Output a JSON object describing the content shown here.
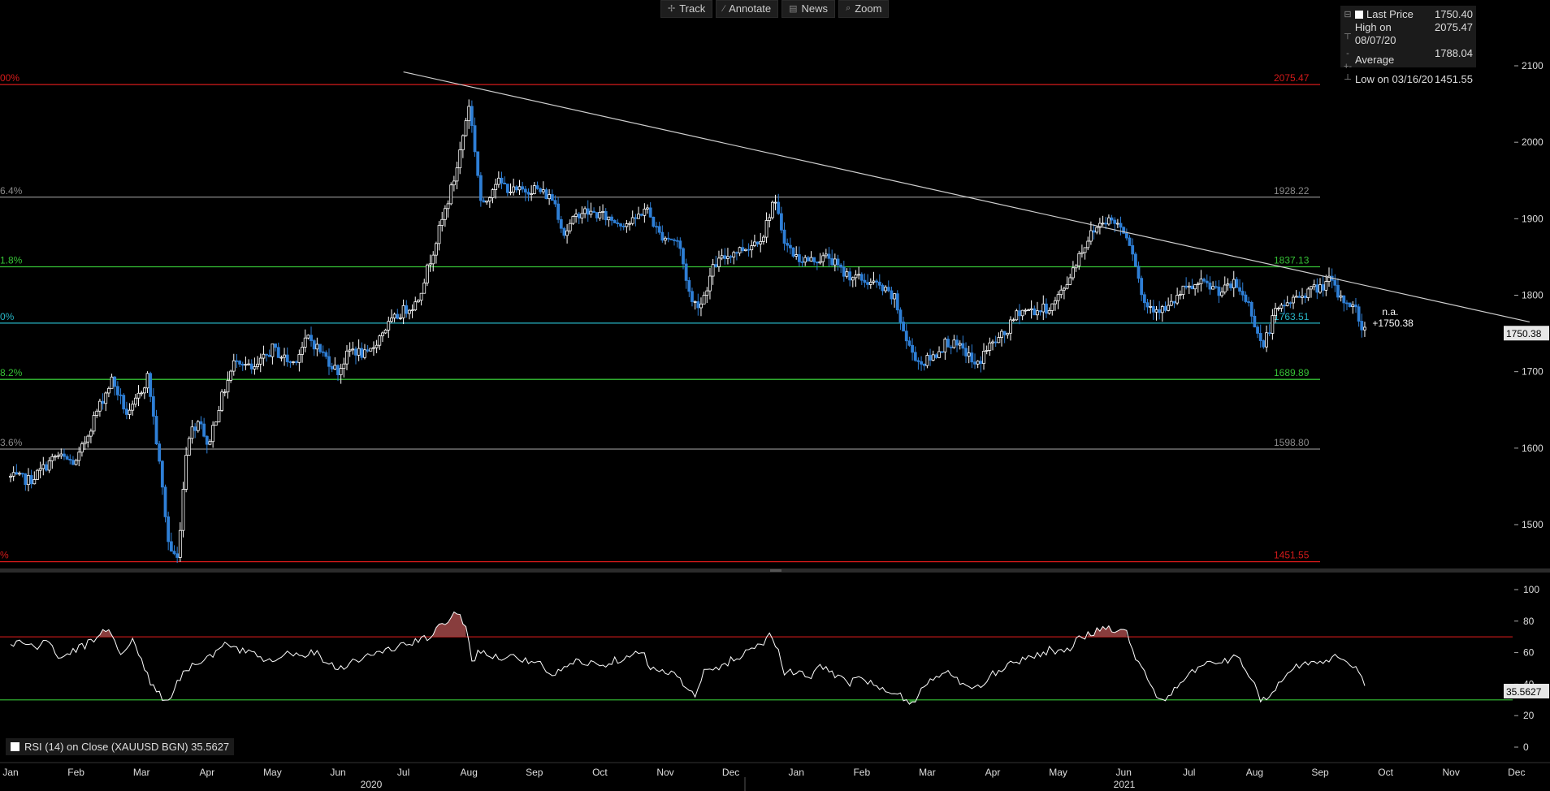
{
  "toolbar": {
    "track": "Track",
    "annotate": "Annotate",
    "news": "News",
    "zoom": "Zoom"
  },
  "legend": {
    "last_price_label": "Last Price",
    "last_price_value": "1750.40",
    "high_label": "High on 08/07/20",
    "high_value": "2075.47",
    "average_label": "Average",
    "average_value": "1788.04",
    "low_label": "Low on 03/16/20",
    "low_value": "1451.55"
  },
  "price_tag": "1750.38",
  "price_annotation_na": "n.a.",
  "price_annotation_value": "+1750.38",
  "rsi_tag": "35.5627",
  "rsi_label": "RSI (14)  on Close (XAUUSD BGN) 35.5627",
  "colors": {
    "background": "#000000",
    "candle_up": "#ffffff",
    "candle_down": "#2e7fd6",
    "fib_red": "#d41a1a",
    "fib_gray": "#8a8a8a",
    "fib_green": "#36c236",
    "fib_cyan": "#27b5c5",
    "trendline": "#cfcfcf",
    "rsi_line": "#ffffff",
    "rsi_overbought_fill": "#a04848",
    "rsi_oversold_fill": "#2e9e2e"
  },
  "chart_data": [
    {
      "type": "candlestick",
      "ylim": [
        1440,
        2120
      ],
      "y_ticks": [
        1500,
        1600,
        1700,
        1800,
        1900,
        2000,
        2100
      ],
      "x_month_labels": [
        "Jan",
        "Feb",
        "Mar",
        "Apr",
        "May",
        "Jun",
        "Jul",
        "Aug",
        "Sep",
        "Oct",
        "Nov",
        "Dec",
        "Jan",
        "Feb",
        "Mar",
        "Apr",
        "May",
        "Jun",
        "Jul",
        "Aug",
        "Sep",
        "Oct",
        "Nov",
        "Dec"
      ],
      "x_year_labels": [
        "2020",
        "2021"
      ],
      "fib_levels": [
        {
          "left_label": "00%",
          "price": 2075.47,
          "right_label": "2075.47",
          "color": "red"
        },
        {
          "left_label": "6.4%",
          "price": 1928.22,
          "right_label": "1928.22",
          "color": "gray"
        },
        {
          "left_label": "1.8%",
          "price": 1837.13,
          "right_label": "1837.13",
          "color": "green"
        },
        {
          "left_label": "0%",
          "price": 1763.51,
          "right_label": "1763.51",
          "color": "cyan"
        },
        {
          "left_label": "8.2%",
          "price": 1689.89,
          "right_label": "1689.89",
          "color": "green"
        },
        {
          "left_label": "3.6%",
          "price": 1598.8,
          "right_label": "1598.80",
          "color": "gray"
        },
        {
          "left_label": "%",
          "price": 1451.55,
          "right_label": "1451.55",
          "color": "red"
        }
      ],
      "trendline": {
        "from": {
          "month_index": 6.0,
          "price": 2092
        },
        "to": {
          "month_index": 23.2,
          "price": 1765
        }
      },
      "price_anchors": [
        [
          0.0,
          1562
        ],
        [
          0.3,
          1558
        ],
        [
          0.7,
          1590
        ],
        [
          1.0,
          1580
        ],
        [
          1.3,
          1645
        ],
        [
          1.55,
          1690
        ],
        [
          1.8,
          1640
        ],
        [
          2.1,
          1695
        ],
        [
          2.3,
          1560
        ],
        [
          2.42,
          1470
        ],
        [
          2.55,
          1455
        ],
        [
          2.7,
          1615
        ],
        [
          2.9,
          1640
        ],
        [
          3.0,
          1600
        ],
        [
          3.2,
          1660
        ],
        [
          3.45,
          1720
        ],
        [
          3.7,
          1700
        ],
        [
          4.0,
          1730
        ],
        [
          4.3,
          1710
        ],
        [
          4.55,
          1745
        ],
        [
          4.8,
          1720
        ],
        [
          5.0,
          1700
        ],
        [
          5.2,
          1730
        ],
        [
          5.45,
          1720
        ],
        [
          5.7,
          1755
        ],
        [
          6.0,
          1780
        ],
        [
          6.2,
          1790
        ],
        [
          6.35,
          1830
        ],
        [
          6.6,
          1900
        ],
        [
          6.8,
          1960
        ],
        [
          7.0,
          2050
        ],
        [
          7.1,
          1985
        ],
        [
          7.2,
          1910
        ],
        [
          7.4,
          1950
        ],
        [
          7.7,
          1935
        ],
        [
          8.0,
          1940
        ],
        [
          8.3,
          1925
        ],
        [
          8.45,
          1880
        ],
        [
          8.7,
          1910
        ],
        [
          9.0,
          1905
        ],
        [
          9.3,
          1895
        ],
        [
          9.5,
          1895
        ],
        [
          9.7,
          1915
        ],
        [
          9.9,
          1880
        ],
        [
          10.2,
          1870
        ],
        [
          10.4,
          1790
        ],
        [
          10.55,
          1790
        ],
        [
          10.75,
          1840
        ],
        [
          11.0,
          1855
        ],
        [
          11.3,
          1865
        ],
        [
          11.5,
          1880
        ],
        [
          11.65,
          1925
        ],
        [
          11.75,
          1895
        ],
        [
          11.85,
          1865
        ],
        [
          12.0,
          1850
        ],
        [
          12.2,
          1845
        ],
        [
          12.5,
          1850
        ],
        [
          12.7,
          1830
        ],
        [
          13.0,
          1820
        ],
        [
          13.2,
          1815
        ],
        [
          13.5,
          1795
        ],
        [
          13.7,
          1735
        ],
        [
          13.9,
          1710
        ],
        [
          14.1,
          1720
        ],
        [
          14.3,
          1740
        ],
        [
          14.6,
          1725
        ],
        [
          14.75,
          1705
        ],
        [
          14.9,
          1730
        ],
        [
          15.2,
          1750
        ],
        [
          15.4,
          1780
        ],
        [
          15.7,
          1780
        ],
        [
          15.9,
          1785
        ],
        [
          16.1,
          1810
        ],
        [
          16.3,
          1850
        ],
        [
          16.5,
          1880
        ],
        [
          16.7,
          1900
        ],
        [
          16.9,
          1895
        ],
        [
          17.05,
          1880
        ],
        [
          17.15,
          1855
        ],
        [
          17.3,
          1790
        ],
        [
          17.45,
          1785
        ],
        [
          17.65,
          1780
        ],
        [
          17.9,
          1805
        ],
        [
          18.2,
          1815
        ],
        [
          18.5,
          1805
        ],
        [
          18.7,
          1815
        ],
        [
          18.9,
          1790
        ],
        [
          19.0,
          1765
        ],
        [
          19.12,
          1730
        ],
        [
          19.3,
          1775
        ],
        [
          19.5,
          1790
        ],
        [
          19.8,
          1805
        ],
        [
          20.0,
          1810
        ],
        [
          20.15,
          1820
        ],
        [
          20.3,
          1795
        ],
        [
          20.45,
          1790
        ],
        [
          20.55,
          1780
        ],
        [
          20.62,
          1760
        ],
        [
          20.7,
          1752
        ]
      ],
      "last_price": 1750.38
    },
    {
      "type": "line",
      "name": "RSI (14)",
      "ylim": [
        -6,
        110
      ],
      "y_ticks": [
        0,
        20,
        40,
        60,
        80,
        100
      ],
      "overbought": 70,
      "oversold": 30,
      "rsi_anchors": [
        [
          0.0,
          65
        ],
        [
          0.2,
          67
        ],
        [
          0.4,
          63
        ],
        [
          0.6,
          68
        ],
        [
          0.75,
          55
        ],
        [
          0.9,
          60
        ],
        [
          1.1,
          64
        ],
        [
          1.3,
          68
        ],
        [
          1.45,
          76
        ],
        [
          1.55,
          72
        ],
        [
          1.7,
          58
        ],
        [
          1.85,
          68
        ],
        [
          2.0,
          56
        ],
        [
          2.15,
          40
        ],
        [
          2.3,
          32
        ],
        [
          2.42,
          30
        ],
        [
          2.55,
          42
        ],
        [
          2.7,
          50
        ],
        [
          2.9,
          55
        ],
        [
          3.1,
          58
        ],
        [
          3.3,
          66
        ],
        [
          3.5,
          60
        ],
        [
          3.7,
          62
        ],
        [
          3.9,
          55
        ],
        [
          4.1,
          58
        ],
        [
          4.3,
          60
        ],
        [
          4.45,
          57
        ],
        [
          4.6,
          62
        ],
        [
          4.8,
          55
        ],
        [
          5.0,
          50
        ],
        [
          5.2,
          54
        ],
        [
          5.4,
          57
        ],
        [
          5.6,
          60
        ],
        [
          5.8,
          62
        ],
        [
          6.0,
          65
        ],
        [
          6.2,
          67
        ],
        [
          6.4,
          70
        ],
        [
          6.6,
          78
        ],
        [
          6.8,
          85
        ],
        [
          6.95,
          79
        ],
        [
          7.05,
          55
        ],
        [
          7.2,
          62
        ],
        [
          7.4,
          57
        ],
        [
          7.6,
          58
        ],
        [
          7.9,
          55
        ],
        [
          8.1,
          52
        ],
        [
          8.3,
          45
        ],
        [
          8.5,
          52
        ],
        [
          8.7,
          55
        ],
        [
          9.0,
          52
        ],
        [
          9.3,
          56
        ],
        [
          9.5,
          60
        ],
        [
          9.65,
          62
        ],
        [
          9.75,
          50
        ],
        [
          9.9,
          47
        ],
        [
          10.1,
          49
        ],
        [
          10.3,
          38
        ],
        [
          10.45,
          32
        ],
        [
          10.6,
          48
        ],
        [
          10.8,
          50
        ],
        [
          11.0,
          55
        ],
        [
          11.3,
          62
        ],
        [
          11.5,
          67
        ],
        [
          11.6,
          72
        ],
        [
          11.7,
          65
        ],
        [
          11.8,
          48
        ],
        [
          12.0,
          47
        ],
        [
          12.2,
          44
        ],
        [
          12.4,
          52
        ],
        [
          12.6,
          46
        ],
        [
          12.8,
          40
        ],
        [
          13.0,
          45
        ],
        [
          13.2,
          38
        ],
        [
          13.4,
          35
        ],
        [
          13.6,
          32
        ],
        [
          13.8,
          28
        ],
        [
          13.95,
          38
        ],
        [
          14.1,
          45
        ],
        [
          14.3,
          47
        ],
        [
          14.5,
          42
        ],
        [
          14.7,
          35
        ],
        [
          14.85,
          40
        ],
        [
          15.0,
          46
        ],
        [
          15.2,
          52
        ],
        [
          15.4,
          55
        ],
        [
          15.6,
          58
        ],
        [
          15.9,
          62
        ],
        [
          16.1,
          60
        ],
        [
          16.3,
          68
        ],
        [
          16.5,
          72
        ],
        [
          16.7,
          76
        ],
        [
          16.9,
          75
        ],
        [
          17.05,
          72
        ],
        [
          17.15,
          60
        ],
        [
          17.3,
          50
        ],
        [
          17.4,
          40
        ],
        [
          17.55,
          30
        ],
        [
          17.7,
          33
        ],
        [
          17.9,
          40
        ],
        [
          18.1,
          50
        ],
        [
          18.3,
          55
        ],
        [
          18.5,
          53
        ],
        [
          18.7,
          57
        ],
        [
          18.85,
          52
        ],
        [
          19.0,
          40
        ],
        [
          19.1,
          30
        ],
        [
          19.2,
          28
        ],
        [
          19.35,
          40
        ],
        [
          19.5,
          48
        ],
        [
          19.7,
          52
        ],
        [
          19.9,
          55
        ],
        [
          20.05,
          53
        ],
        [
          20.2,
          58
        ],
        [
          20.35,
          55
        ],
        [
          20.5,
          50
        ],
        [
          20.62,
          47
        ],
        [
          20.7,
          36
        ]
      ],
      "last_value": 35.5627
    }
  ]
}
